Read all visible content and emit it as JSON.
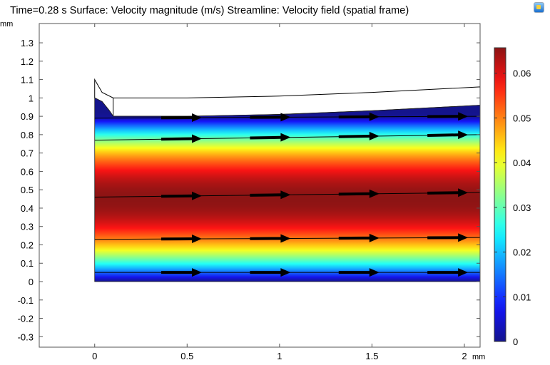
{
  "title": "Time=0.28 s   Surface: Velocity magnitude (m/s)   Streamline: Velocity field (spatial frame)",
  "chart_data": {
    "type": "heatmap",
    "title": "Time=0.28 s   Surface: Velocity magnitude (m/s)   Streamline: Velocity field (spatial frame)",
    "xlabel": "mm",
    "ylabel": "mm",
    "xlim": [
      -0.3,
      2.085
    ],
    "ylim": [
      -0.357,
      1.405
    ],
    "xticks": [
      "0",
      "0.5",
      "1",
      "1.5",
      "2"
    ],
    "xtick_values": [
      0,
      0.5,
      1,
      1.5,
      2
    ],
    "yticks": [
      "-0.3",
      "-0.2",
      "-0.1",
      "0",
      "0.1",
      "0.2",
      "0.3",
      "0.4",
      "0.5",
      "0.6",
      "0.7",
      "0.8",
      "0.9",
      "1",
      "1.1",
      "1.2",
      "1.3"
    ],
    "ytick_values": [
      -0.3,
      -0.2,
      -0.1,
      0,
      0.1,
      0.2,
      0.3,
      0.4,
      0.5,
      0.6,
      0.7,
      0.8,
      0.9,
      1,
      1.1,
      1.2,
      1.3
    ],
    "surface": {
      "quantity": "Velocity magnitude (m/s)",
      "min": 0,
      "max": 0.0657,
      "max_at_y": 0.45,
      "colormap": "jet"
    },
    "fluid_top_boundary": [
      [
        0,
        1.0
      ],
      [
        0.04,
        0.98
      ],
      [
        0.08,
        0.93
      ],
      [
        0.1,
        0.9
      ],
      [
        0.5,
        0.9
      ],
      [
        1,
        0.91
      ],
      [
        1.5,
        0.93
      ],
      [
        2.085,
        0.96
      ]
    ],
    "solid_top_boundary": [
      [
        0,
        1.1
      ],
      [
        0.04,
        1.03
      ],
      [
        0.1,
        1.0
      ],
      [
        0.5,
        1.0
      ],
      [
        1,
        1.01
      ],
      [
        1.5,
        1.03
      ],
      [
        2.085,
        1.06
      ]
    ],
    "streamlines": [
      {
        "y_start": 0.05,
        "y_end": 0.05
      },
      {
        "y_start": 0.23,
        "y_end": 0.24
      },
      {
        "y_start": 0.46,
        "y_end": 0.485
      },
      {
        "y_start": 0.77,
        "y_end": 0.8
      },
      {
        "y_start": 0.89,
        "y_end": 0.9
      }
    ],
    "arrow_x": [
      0.36,
      0.84,
      1.32,
      1.8
    ],
    "colorbar": {
      "ticks": [
        "0",
        "0.01",
        "0.02",
        "0.03",
        "0.04",
        "0.05",
        "0.06"
      ],
      "tick_values": [
        0,
        0.01,
        0.02,
        0.03,
        0.04,
        0.05,
        0.06
      ],
      "range": [
        0,
        0.0657
      ]
    }
  }
}
